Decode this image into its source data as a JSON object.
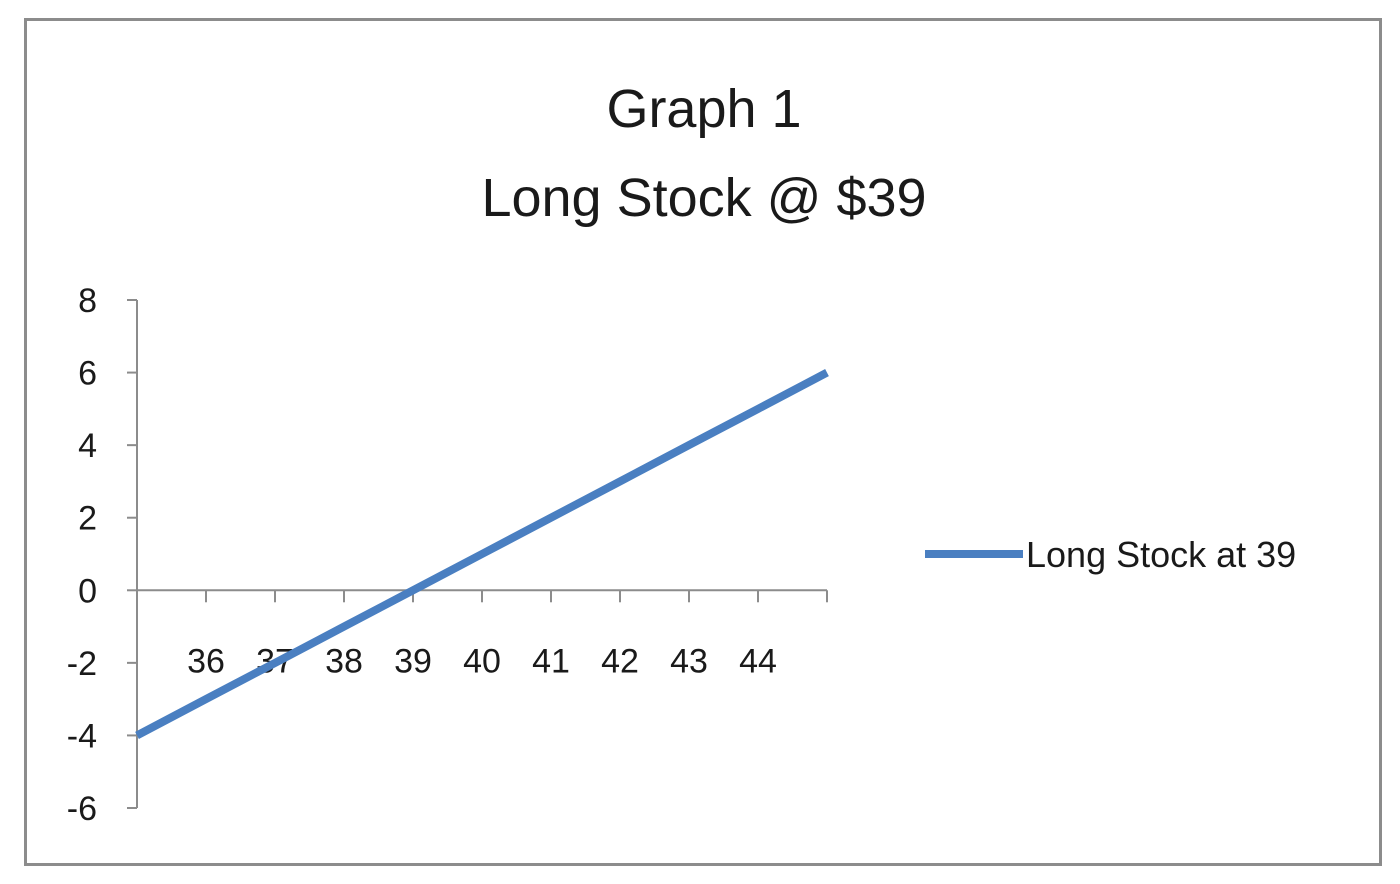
{
  "chart_data": {
    "type": "line",
    "title": "Graph 1",
    "subtitle": "Long Stock @ $39",
    "x": [
      35,
      36,
      37,
      38,
      39,
      40,
      41,
      42,
      43,
      44,
      45
    ],
    "x_tick_labels": [
      "36",
      "37",
      "38",
      "39",
      "40",
      "41",
      "42",
      "43",
      "44"
    ],
    "y_tick_labels": [
      "8",
      "6",
      "4",
      "2",
      "0",
      "-2",
      "-4",
      "-6"
    ],
    "ylim": [
      -6,
      8
    ],
    "y_ticks": [
      8,
      6,
      4,
      2,
      0,
      -2,
      -4,
      -6
    ],
    "series": [
      {
        "name": "Long Stock at 39",
        "color": "#4a7fc1",
        "values": [
          -4,
          -3,
          -2,
          -1,
          0,
          1,
          2,
          3,
          4,
          5,
          6
        ]
      }
    ],
    "legend_position": "right",
    "grid": false
  }
}
